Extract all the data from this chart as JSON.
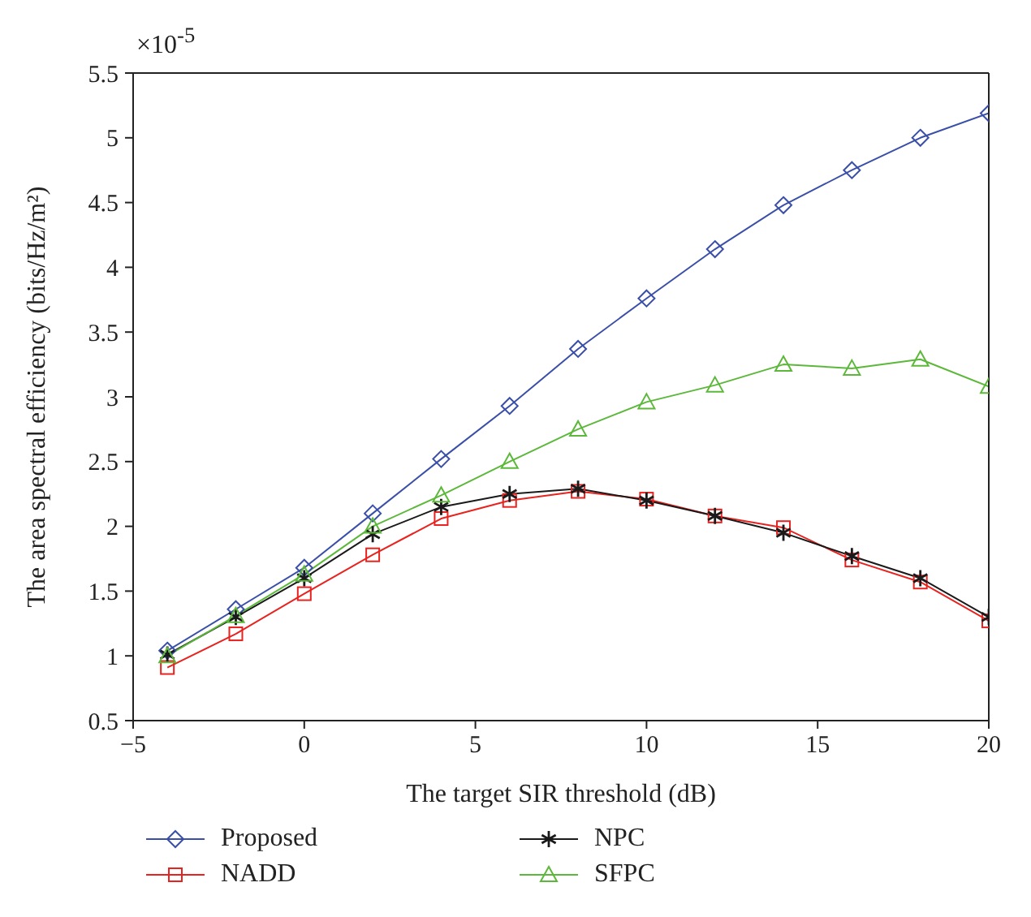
{
  "chart_data": {
    "type": "line",
    "xlabel": "The target SIR threshold (dB)",
    "ylabel": "The area spectral efficiency (bits/Hz/m²)",
    "annotations": [
      "×10$^{-5}$"
    ],
    "x": [
      -4,
      -2,
      0,
      2,
      4,
      6,
      8,
      10,
      12,
      14,
      16,
      18,
      20
    ],
    "series": [
      {
        "name": "Proposed",
        "color": "#3a4fa8",
        "marker": "diamond",
        "values": [
          1.04,
          1.36,
          1.68,
          2.1,
          2.52,
          2.93,
          3.37,
          3.76,
          4.14,
          4.48,
          4.75,
          5.0,
          5.19
        ]
      },
      {
        "name": "NADD",
        "color": "#e8231f",
        "marker": "square",
        "values": [
          0.91,
          1.17,
          1.48,
          1.78,
          2.06,
          2.2,
          2.27,
          2.21,
          2.08,
          1.99,
          1.74,
          1.57,
          1.27
        ]
      },
      {
        "name": "NPC",
        "color": "#1a1a1a",
        "marker": "cross",
        "values": [
          1.01,
          1.3,
          1.6,
          1.94,
          2.15,
          2.25,
          2.29,
          2.2,
          2.08,
          1.95,
          1.77,
          1.6,
          1.3
        ]
      },
      {
        "name": "SFPC",
        "color": "#5cb83a",
        "marker": "triangle",
        "values": [
          1.0,
          1.31,
          1.63,
          2.0,
          2.24,
          2.5,
          2.75,
          2.96,
          3.09,
          3.25,
          3.22,
          3.29,
          3.08
        ]
      }
    ],
    "xlim": [
      -5,
      20
    ],
    "xticks": [
      -5,
      0,
      5,
      10,
      15,
      20
    ],
    "ylim": [
      0.5,
      5.5
    ],
    "yticks": [
      0.5,
      1,
      1.5,
      2,
      2.5,
      3,
      3.5,
      4,
      4.5,
      5,
      5.5
    ],
    "grid": false,
    "legend": "bottom",
    "line_style": "solid"
  }
}
